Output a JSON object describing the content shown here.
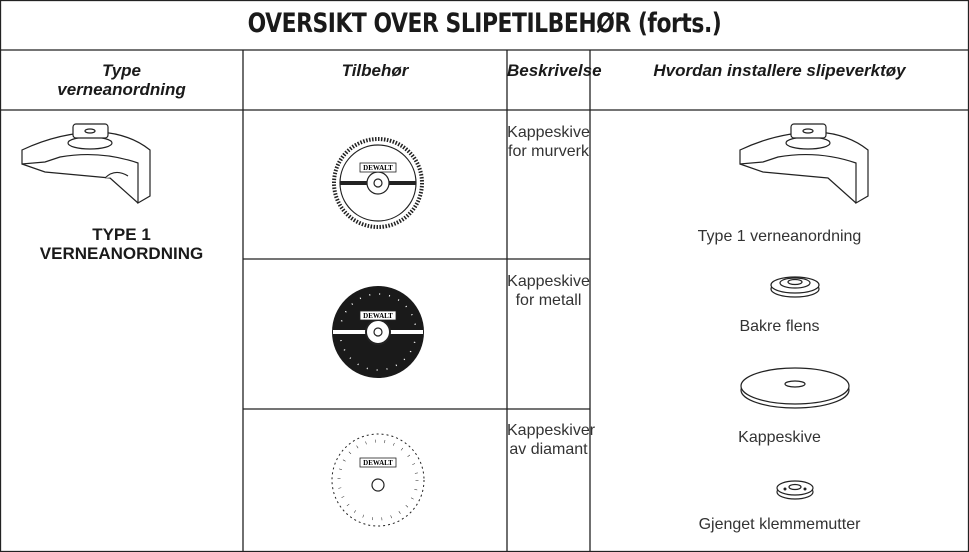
{
  "title": "OVERSIKT OVER SLIPETILBEHØR (forts.)",
  "header": {
    "columns": [
      "Type\nverneanordning",
      "Tilbehør",
      "Beskrivelse",
      "Hvordan installere slipeverktøy"
    ]
  },
  "guard_label": "TYPE 1\nVERNEANORDNING",
  "brand": "DEWALT",
  "rows": [
    {
      "description": "Kappeskive\nfor murverk"
    },
    {
      "description": "Kappeskive\nfor metall"
    },
    {
      "description": "Kappeskiver\nav diamant"
    }
  ],
  "install_steps": [
    "Type 1 verneanordning",
    "Bakre flens",
    "Kappeskive",
    "Gjenget klemmemutter"
  ]
}
